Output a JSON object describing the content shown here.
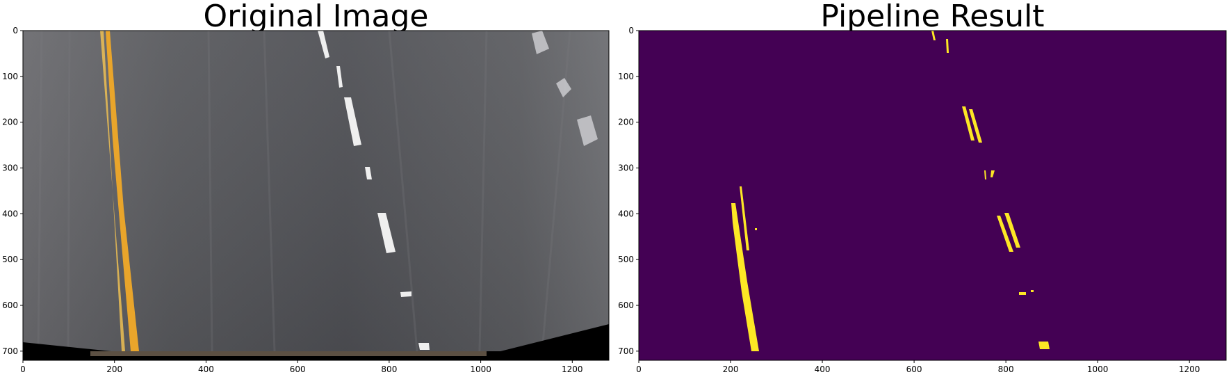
{
  "panels": [
    {
      "title": "Original Image",
      "x_ticks": [
        "0",
        "200",
        "400",
        "600",
        "800",
        "1000",
        "1200"
      ],
      "y_ticks": [
        "0",
        "100",
        "200",
        "300",
        "400",
        "500",
        "600",
        "700"
      ]
    },
    {
      "title": "Pipeline Result",
      "x_ticks": [
        "0",
        "200",
        "400",
        "600",
        "800",
        "1000",
        "1200"
      ],
      "y_ticks": [
        "0",
        "100",
        "200",
        "300",
        "400",
        "500",
        "600",
        "700"
      ]
    }
  ],
  "image_extent": {
    "x_max": 1280,
    "y_max": 720
  },
  "colors": {
    "road": "#55565a",
    "yellow_line": "#e9a52b",
    "binary_bg": "#440154",
    "binary_fg": "#fde725",
    "white_dash": "#f2f2f2"
  }
}
